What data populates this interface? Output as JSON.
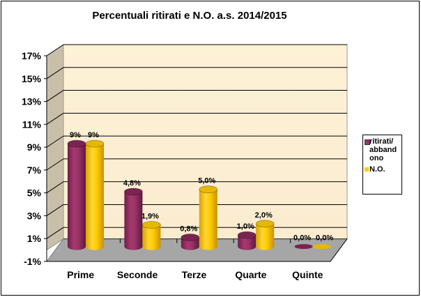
{
  "chart_data": {
    "type": "bar",
    "title": "Percentuali  ritirati  e N.O. a.s. 2014/2015",
    "xlabel": "",
    "ylabel": "",
    "ylim": [
      -1,
      17
    ],
    "yticks": [
      "17%",
      "15%",
      "13%",
      "11%",
      "9%",
      "7%",
      "5%",
      "3%",
      "1%",
      "-1%"
    ],
    "categories": [
      "Prime",
      "Seconde",
      "Terze",
      "Quarte",
      "Quinte"
    ],
    "series": [
      {
        "name": "ritirati/ abbandono",
        "legend_lines": [
          "ritirati/",
          "abband",
          "ono"
        ],
        "color": "#993366",
        "values": [
          9,
          4.8,
          0.8,
          1.0,
          0.0
        ],
        "labels": [
          "9%",
          "4,8%",
          "0,8%",
          "1,0%",
          "0,0%"
        ]
      },
      {
        "name": "N.O.",
        "legend_lines": [
          "N.O."
        ],
        "color": "#FFCC00",
        "values": [
          9,
          1.9,
          5.0,
          2.0,
          0.0
        ],
        "labels": [
          "9%",
          "1,9%",
          "5,0%",
          "2,0%",
          "0,0%"
        ]
      }
    ],
    "grid": true,
    "legend_position": "right",
    "style": "3d-cylinder"
  }
}
